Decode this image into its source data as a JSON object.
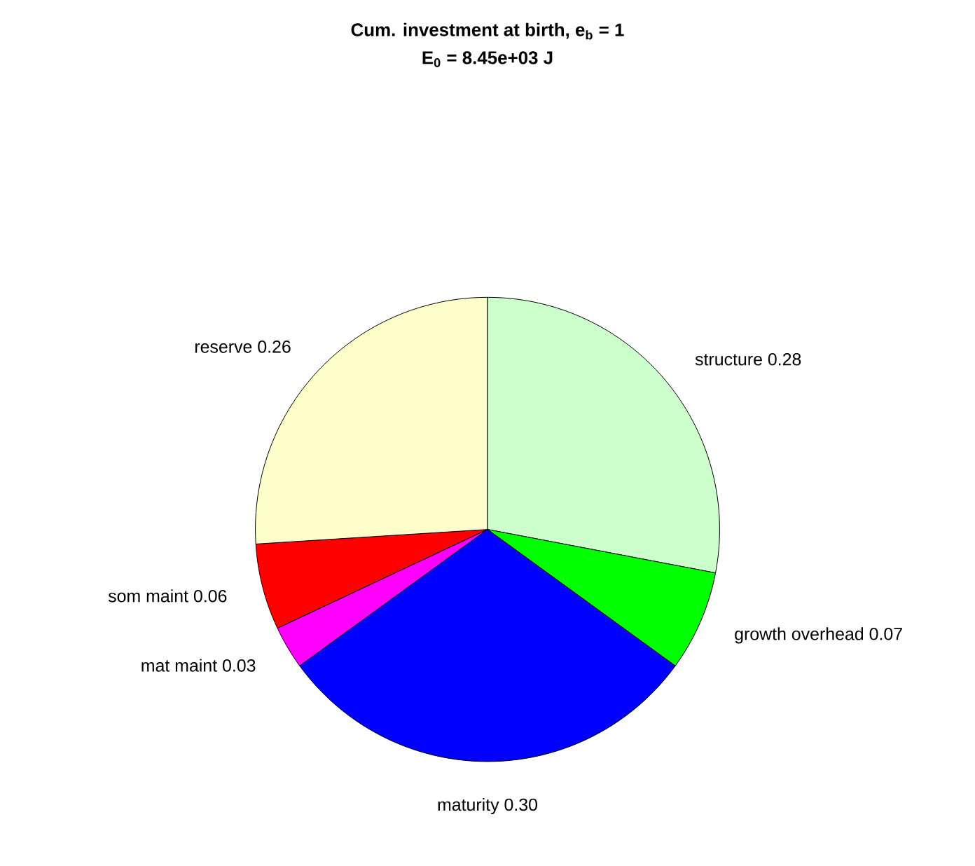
{
  "chart_data": {
    "type": "pie",
    "title": "Cum. investment at birth, e$_{b}$ = 1",
    "subtitle": "E$_{0}$ = 8.45e+03 J",
    "categories": [
      "structure",
      "growth overhead",
      "maturity",
      "mat maint",
      "som maint",
      "reserve"
    ],
    "values": [
      0.28,
      0.07,
      0.3,
      0.03,
      0.06,
      0.26
    ],
    "value_labels": [
      "0.28",
      "0.07",
      "0.30",
      "0.03",
      "0.06",
      "0.26"
    ],
    "colors": [
      "#ccffcc",
      "#00ff00",
      "#0000ff",
      "#ff00ff",
      "#ff0000",
      "#ffffcc"
    ]
  }
}
